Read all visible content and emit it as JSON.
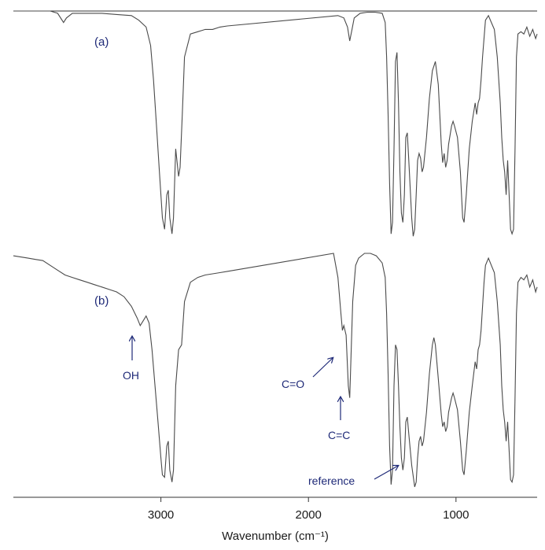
{
  "chart_data": {
    "type": "line",
    "xlabel": "Wavenumber (cm⁻¹)",
    "xlim": [
      4000,
      450
    ],
    "x_ticks": [
      3000,
      2000,
      1000
    ],
    "x_tick_labels": [
      "3000",
      "2000",
      "1000"
    ],
    "ylim": [
      0,
      1
    ],
    "series": [
      {
        "name": "(a)",
        "points": [
          [
            4000,
            1.0
          ],
          [
            3850,
            1.0
          ],
          [
            3750,
            1.0
          ],
          [
            3700,
            0.99
          ],
          [
            3660,
            0.95
          ],
          [
            3640,
            0.97
          ],
          [
            3600,
            0.99
          ],
          [
            3500,
            0.99
          ],
          [
            3400,
            0.99
          ],
          [
            3300,
            0.985
          ],
          [
            3200,
            0.98
          ],
          [
            3150,
            0.96
          ],
          [
            3100,
            0.93
          ],
          [
            3070,
            0.85
          ],
          [
            3050,
            0.7
          ],
          [
            3030,
            0.5
          ],
          [
            3010,
            0.3
          ],
          [
            2990,
            0.1
          ],
          [
            2975,
            0.05
          ],
          [
            2960,
            0.2
          ],
          [
            2950,
            0.22
          ],
          [
            2940,
            0.1
          ],
          [
            2925,
            0.03
          ],
          [
            2915,
            0.1
          ],
          [
            2900,
            0.4
          ],
          [
            2880,
            0.28
          ],
          [
            2870,
            0.32
          ],
          [
            2855,
            0.55
          ],
          [
            2840,
            0.8
          ],
          [
            2800,
            0.9
          ],
          [
            2750,
            0.91
          ],
          [
            2700,
            0.92
          ],
          [
            2650,
            0.92
          ],
          [
            2600,
            0.93
          ],
          [
            2550,
            0.935
          ],
          [
            1800,
            0.98
          ],
          [
            1760,
            0.97
          ],
          [
            1735,
            0.93
          ],
          [
            1720,
            0.87
          ],
          [
            1705,
            0.92
          ],
          [
            1690,
            0.97
          ],
          [
            1650,
            0.99
          ],
          [
            1600,
            0.995
          ],
          [
            1550,
            0.995
          ],
          [
            1500,
            0.99
          ],
          [
            1480,
            0.95
          ],
          [
            1470,
            0.8
          ],
          [
            1460,
            0.55
          ],
          [
            1450,
            0.25
          ],
          [
            1440,
            0.03
          ],
          [
            1430,
            0.08
          ],
          [
            1420,
            0.4
          ],
          [
            1410,
            0.78
          ],
          [
            1400,
            0.82
          ],
          [
            1390,
            0.6
          ],
          [
            1380,
            0.3
          ],
          [
            1370,
            0.12
          ],
          [
            1360,
            0.08
          ],
          [
            1350,
            0.2
          ],
          [
            1340,
            0.45
          ],
          [
            1330,
            0.47
          ],
          [
            1320,
            0.35
          ],
          [
            1300,
            0.1
          ],
          [
            1290,
            0.02
          ],
          [
            1280,
            0.05
          ],
          [
            1270,
            0.2
          ],
          [
            1260,
            0.35
          ],
          [
            1250,
            0.38
          ],
          [
            1240,
            0.36
          ],
          [
            1230,
            0.3
          ],
          [
            1220,
            0.32
          ],
          [
            1200,
            0.45
          ],
          [
            1180,
            0.62
          ],
          [
            1160,
            0.74
          ],
          [
            1140,
            0.78
          ],
          [
            1120,
            0.68
          ],
          [
            1100,
            0.42
          ],
          [
            1090,
            0.34
          ],
          [
            1080,
            0.38
          ],
          [
            1070,
            0.32
          ],
          [
            1060,
            0.35
          ],
          [
            1050,
            0.42
          ],
          [
            1030,
            0.5
          ],
          [
            1020,
            0.52
          ],
          [
            1010,
            0.5
          ],
          [
            990,
            0.45
          ],
          [
            970,
            0.3
          ],
          [
            955,
            0.1
          ],
          [
            945,
            0.08
          ],
          [
            930,
            0.2
          ],
          [
            910,
            0.4
          ],
          [
            890,
            0.52
          ],
          [
            870,
            0.6
          ],
          [
            860,
            0.55
          ],
          [
            850,
            0.6
          ],
          [
            840,
            0.62
          ],
          [
            830,
            0.7
          ],
          [
            820,
            0.8
          ],
          [
            800,
            0.96
          ],
          [
            780,
            0.98
          ],
          [
            760,
            0.95
          ],
          [
            740,
            0.92
          ],
          [
            720,
            0.8
          ],
          [
            700,
            0.6
          ],
          [
            690,
            0.45
          ],
          [
            680,
            0.35
          ],
          [
            670,
            0.3
          ],
          [
            660,
            0.2
          ],
          [
            650,
            0.35
          ],
          [
            640,
            0.2
          ],
          [
            630,
            0.05
          ],
          [
            620,
            0.03
          ],
          [
            610,
            0.05
          ],
          [
            600,
            0.4
          ],
          [
            590,
            0.8
          ],
          [
            580,
            0.9
          ],
          [
            560,
            0.91
          ],
          [
            540,
            0.9
          ],
          [
            520,
            0.93
          ],
          [
            500,
            0.89
          ],
          [
            480,
            0.92
          ],
          [
            460,
            0.88
          ],
          [
            450,
            0.9
          ]
        ]
      },
      {
        "name": "(b)",
        "points": [
          [
            4000,
            0.99
          ],
          [
            3950,
            0.985
          ],
          [
            3900,
            0.98
          ],
          [
            3850,
            0.975
          ],
          [
            3800,
            0.97
          ],
          [
            3750,
            0.95
          ],
          [
            3700,
            0.93
          ],
          [
            3650,
            0.91
          ],
          [
            3600,
            0.9
          ],
          [
            3550,
            0.89
          ],
          [
            3500,
            0.88
          ],
          [
            3450,
            0.87
          ],
          [
            3400,
            0.86
          ],
          [
            3350,
            0.85
          ],
          [
            3300,
            0.84
          ],
          [
            3250,
            0.82
          ],
          [
            3200,
            0.78
          ],
          [
            3160,
            0.73
          ],
          [
            3140,
            0.7
          ],
          [
            3120,
            0.72
          ],
          [
            3100,
            0.74
          ],
          [
            3080,
            0.71
          ],
          [
            3060,
            0.6
          ],
          [
            3040,
            0.45
          ],
          [
            3020,
            0.3
          ],
          [
            3000,
            0.15
          ],
          [
            2990,
            0.08
          ],
          [
            2975,
            0.07
          ],
          [
            2960,
            0.2
          ],
          [
            2950,
            0.22
          ],
          [
            2940,
            0.1
          ],
          [
            2925,
            0.05
          ],
          [
            2915,
            0.1
          ],
          [
            2900,
            0.45
          ],
          [
            2880,
            0.6
          ],
          [
            2860,
            0.62
          ],
          [
            2840,
            0.8
          ],
          [
            2800,
            0.88
          ],
          [
            2750,
            0.9
          ],
          [
            2700,
            0.91
          ],
          [
            2650,
            0.915
          ],
          [
            2600,
            0.92
          ],
          [
            2550,
            0.925
          ],
          [
            1830,
            1.0
          ],
          [
            1800,
            0.9
          ],
          [
            1780,
            0.75
          ],
          [
            1770,
            0.68
          ],
          [
            1760,
            0.7
          ],
          [
            1745,
            0.66
          ],
          [
            1730,
            0.45
          ],
          [
            1720,
            0.4
          ],
          [
            1710,
            0.6
          ],
          [
            1700,
            0.8
          ],
          [
            1680,
            0.95
          ],
          [
            1660,
            0.98
          ],
          [
            1620,
            1.0
          ],
          [
            1580,
            1.0
          ],
          [
            1540,
            0.99
          ],
          [
            1500,
            0.96
          ],
          [
            1480,
            0.9
          ],
          [
            1470,
            0.75
          ],
          [
            1460,
            0.5
          ],
          [
            1450,
            0.2
          ],
          [
            1440,
            0.04
          ],
          [
            1430,
            0.1
          ],
          [
            1420,
            0.45
          ],
          [
            1410,
            0.62
          ],
          [
            1400,
            0.6
          ],
          [
            1390,
            0.45
          ],
          [
            1380,
            0.28
          ],
          [
            1370,
            0.15
          ],
          [
            1360,
            0.1
          ],
          [
            1350,
            0.15
          ],
          [
            1340,
            0.3
          ],
          [
            1330,
            0.32
          ],
          [
            1320,
            0.25
          ],
          [
            1300,
            0.12
          ],
          [
            1280,
            0.03
          ],
          [
            1270,
            0.05
          ],
          [
            1260,
            0.15
          ],
          [
            1250,
            0.22
          ],
          [
            1240,
            0.24
          ],
          [
            1230,
            0.2
          ],
          [
            1220,
            0.22
          ],
          [
            1200,
            0.34
          ],
          [
            1180,
            0.5
          ],
          [
            1160,
            0.62
          ],
          [
            1150,
            0.65
          ],
          [
            1140,
            0.62
          ],
          [
            1120,
            0.48
          ],
          [
            1100,
            0.33
          ],
          [
            1090,
            0.28
          ],
          [
            1080,
            0.3
          ],
          [
            1070,
            0.26
          ],
          [
            1060,
            0.28
          ],
          [
            1050,
            0.34
          ],
          [
            1030,
            0.4
          ],
          [
            1020,
            0.42
          ],
          [
            1010,
            0.4
          ],
          [
            990,
            0.35
          ],
          [
            970,
            0.22
          ],
          [
            955,
            0.1
          ],
          [
            945,
            0.08
          ],
          [
            930,
            0.18
          ],
          [
            910,
            0.34
          ],
          [
            890,
            0.45
          ],
          [
            870,
            0.55
          ],
          [
            860,
            0.52
          ],
          [
            850,
            0.6
          ],
          [
            840,
            0.62
          ],
          [
            830,
            0.68
          ],
          [
            820,
            0.78
          ],
          [
            810,
            0.88
          ],
          [
            800,
            0.95
          ],
          [
            780,
            0.98
          ],
          [
            760,
            0.95
          ],
          [
            740,
            0.92
          ],
          [
            720,
            0.8
          ],
          [
            700,
            0.62
          ],
          [
            690,
            0.45
          ],
          [
            680,
            0.35
          ],
          [
            670,
            0.3
          ],
          [
            660,
            0.22
          ],
          [
            650,
            0.3
          ],
          [
            640,
            0.18
          ],
          [
            630,
            0.06
          ],
          [
            620,
            0.05
          ],
          [
            610,
            0.08
          ],
          [
            600,
            0.4
          ],
          [
            590,
            0.75
          ],
          [
            580,
            0.88
          ],
          [
            560,
            0.9
          ],
          [
            540,
            0.89
          ],
          [
            520,
            0.91
          ],
          [
            500,
            0.86
          ],
          [
            480,
            0.89
          ],
          [
            460,
            0.84
          ],
          [
            450,
            0.86
          ]
        ]
      }
    ],
    "annotations": [
      {
        "label": "OH",
        "x": 3150,
        "series": "(b)"
      },
      {
        "label": "C=O",
        "x": 1745,
        "series": "(b)"
      },
      {
        "label": "C=C",
        "x": 1720,
        "series": "(b)"
      },
      {
        "label": "reference",
        "x": 1290,
        "series": "(b)"
      }
    ],
    "colors": {
      "trace": "#4a4a4a",
      "annotation": "#1f2a78",
      "axis": "#333333"
    },
    "grid": false,
    "legend": "none"
  }
}
